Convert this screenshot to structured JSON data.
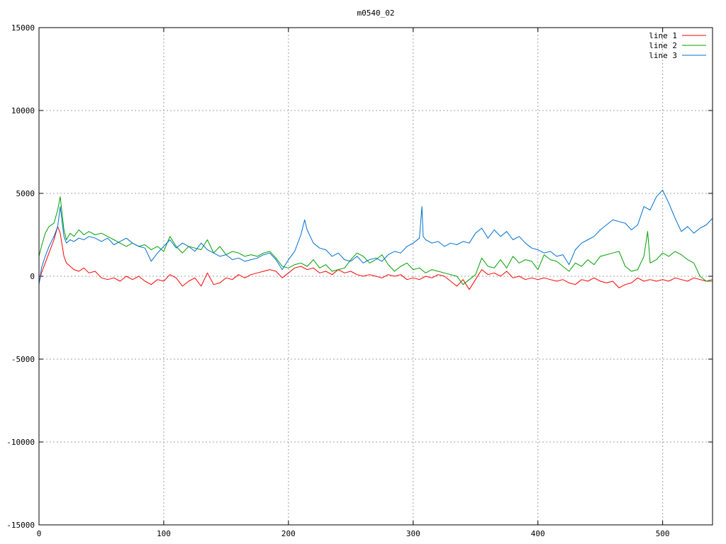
{
  "chart_data": {
    "type": "line",
    "title": "m0540_02",
    "xlabel": "",
    "ylabel": "",
    "xlim": [
      0,
      540
    ],
    "ylim": [
      -15000,
      15000
    ],
    "xticks": [
      0,
      100,
      200,
      300,
      400,
      500
    ],
    "yticks": [
      -15000,
      -10000,
      -5000,
      0,
      5000,
      10000,
      15000
    ],
    "grid": true,
    "legend_position": "top-right",
    "series": [
      {
        "name": "line 1",
        "color": "#ff0000",
        "x": [
          0,
          2,
          5,
          8,
          12,
          15,
          17,
          20,
          22,
          25,
          28,
          32,
          36,
          40,
          45,
          50,
          55,
          60,
          65,
          70,
          75,
          80,
          85,
          90,
          95,
          100,
          105,
          110,
          115,
          120,
          125,
          130,
          135,
          140,
          145,
          150,
          155,
          160,
          165,
          170,
          175,
          180,
          185,
          190,
          195,
          200,
          205,
          210,
          215,
          220,
          225,
          230,
          235,
          240,
          245,
          250,
          255,
          260,
          265,
          270,
          275,
          280,
          285,
          290,
          295,
          300,
          305,
          310,
          315,
          320,
          325,
          330,
          335,
          340,
          345,
          350,
          355,
          360,
          365,
          370,
          375,
          380,
          385,
          390,
          395,
          400,
          405,
          410,
          415,
          420,
          425,
          430,
          435,
          440,
          445,
          450,
          455,
          460,
          465,
          470,
          475,
          480,
          485,
          490,
          495,
          500,
          505,
          510,
          515,
          520,
          525,
          530,
          535,
          540
        ],
        "values": [
          -400,
          200,
          800,
          1400,
          2200,
          3000,
          2600,
          1200,
          800,
          600,
          400,
          300,
          500,
          200,
          300,
          -100,
          -200,
          -100,
          -300,
          0,
          -200,
          0,
          -300,
          -500,
          -200,
          -300,
          100,
          -100,
          -600,
          -300,
          -100,
          -600,
          200,
          -500,
          -400,
          -100,
          -200,
          100,
          -100,
          100,
          200,
          300,
          400,
          300,
          -100,
          200,
          500,
          600,
          400,
          500,
          200,
          300,
          100,
          400,
          200,
          300,
          100,
          0,
          100,
          0,
          -100,
          100,
          0,
          100,
          -200,
          -100,
          -200,
          0,
          -100,
          100,
          0,
          -300,
          -600,
          -200,
          -800,
          -200,
          400,
          100,
          200,
          0,
          300,
          -100,
          0,
          -200,
          -100,
          -200,
          -100,
          -200,
          -300,
          -200,
          -400,
          -500,
          -200,
          -300,
          -100,
          -300,
          -400,
          -300,
          -700,
          -500,
          -400,
          -100,
          -300,
          -200,
          -300,
          -200,
          -300,
          -100,
          -200,
          -300,
          -100,
          -200,
          -300,
          -200
        ]
      },
      {
        "name": "line 2",
        "color": "#00a000",
        "x": [
          0,
          2,
          5,
          8,
          12,
          15,
          17,
          20,
          22,
          25,
          28,
          32,
          36,
          40,
          45,
          50,
          55,
          60,
          65,
          70,
          75,
          80,
          85,
          90,
          95,
          100,
          105,
          110,
          115,
          120,
          125,
          130,
          135,
          140,
          145,
          150,
          155,
          160,
          165,
          170,
          175,
          180,
          185,
          190,
          195,
          200,
          205,
          210,
          215,
          220,
          225,
          230,
          235,
          240,
          245,
          250,
          255,
          260,
          265,
          270,
          275,
          280,
          285,
          290,
          295,
          300,
          305,
          310,
          315,
          320,
          325,
          330,
          335,
          340,
          345,
          350,
          355,
          360,
          365,
          370,
          375,
          380,
          385,
          390,
          395,
          400,
          405,
          410,
          415,
          420,
          425,
          430,
          435,
          440,
          445,
          450,
          455,
          460,
          465,
          470,
          475,
          480,
          485,
          488,
          490,
          495,
          500,
          505,
          510,
          515,
          520,
          525,
          530,
          535,
          540
        ],
        "values": [
          1200,
          1800,
          2600,
          3000,
          3200,
          4000,
          4800,
          2800,
          2200,
          2600,
          2400,
          2800,
          2500,
          2700,
          2500,
          2600,
          2400,
          2200,
          2000,
          1800,
          2000,
          1800,
          1900,
          1600,
          1800,
          1500,
          2400,
          1800,
          1400,
          1800,
          1700,
          1600,
          2200,
          1400,
          1800,
          1300,
          1500,
          1400,
          1200,
          1300,
          1200,
          1400,
          1500,
          1100,
          600,
          500,
          700,
          800,
          600,
          1000,
          500,
          700,
          300,
          400,
          500,
          1000,
          1400,
          1200,
          800,
          1000,
          1300,
          700,
          300,
          600,
          800,
          400,
          500,
          200,
          400,
          300,
          200,
          100,
          0,
          -500,
          -200,
          100,
          1100,
          600,
          500,
          1000,
          500,
          1200,
          800,
          1000,
          900,
          400,
          1300,
          1000,
          900,
          600,
          300,
          800,
          600,
          1000,
          700,
          1200,
          1300,
          1400,
          1500,
          600,
          300,
          400,
          1200,
          2700,
          800,
          1000,
          1400,
          1200,
          1500,
          1300,
          1000,
          800,
          0,
          -300,
          -300
        ]
      },
      {
        "name": "line 3",
        "color": "#0070d0",
        "x": [
          0,
          2,
          5,
          8,
          12,
          15,
          17,
          20,
          22,
          25,
          28,
          32,
          36,
          40,
          45,
          50,
          55,
          60,
          65,
          70,
          75,
          80,
          85,
          90,
          95,
          100,
          105,
          110,
          115,
          120,
          125,
          130,
          135,
          140,
          145,
          150,
          155,
          160,
          165,
          170,
          175,
          180,
          185,
          190,
          195,
          200,
          205,
          210,
          213,
          215,
          220,
          225,
          230,
          235,
          240,
          245,
          250,
          255,
          260,
          265,
          270,
          275,
          280,
          285,
          290,
          295,
          300,
          305,
          307,
          308,
          310,
          315,
          320,
          325,
          330,
          335,
          340,
          345,
          350,
          355,
          360,
          365,
          370,
          375,
          380,
          385,
          390,
          395,
          400,
          405,
          410,
          415,
          420,
          425,
          430,
          435,
          440,
          445,
          450,
          455,
          460,
          465,
          470,
          475,
          480,
          485,
          490,
          495,
          500,
          505,
          510,
          515,
          520,
          525,
          530,
          535,
          540
        ],
        "values": [
          -500,
          500,
          1200,
          1800,
          2400,
          3000,
          4200,
          2400,
          2000,
          2200,
          2100,
          2300,
          2200,
          2400,
          2300,
          2100,
          2300,
          1900,
          2100,
          2300,
          2000,
          1800,
          1700,
          900,
          1400,
          1800,
          2200,
          1700,
          2000,
          1800,
          1500,
          2000,
          1600,
          1400,
          1200,
          1300,
          1000,
          1100,
          900,
          1000,
          1100,
          1300,
          1400,
          1000,
          400,
          1000,
          1500,
          2500,
          3400,
          2800,
          2000,
          1700,
          1600,
          1200,
          1400,
          1000,
          900,
          1200,
          800,
          1000,
          1100,
          900,
          1300,
          1500,
          1400,
          1800,
          2000,
          2300,
          4200,
          2400,
          2200,
          2000,
          2100,
          1800,
          2000,
          1900,
          2100,
          2000,
          2600,
          2900,
          2300,
          2800,
          2400,
          2700,
          2200,
          2400,
          2000,
          1700,
          1600,
          1400,
          1500,
          1200,
          1300,
          700,
          1600,
          2000,
          2200,
          2400,
          2800,
          3100,
          3400,
          3300,
          3200,
          2800,
          3100,
          4200,
          4000,
          4800,
          5200,
          4400,
          3500,
          2700,
          3000,
          2600,
          2900,
          3100,
          3500
        ]
      }
    ]
  }
}
